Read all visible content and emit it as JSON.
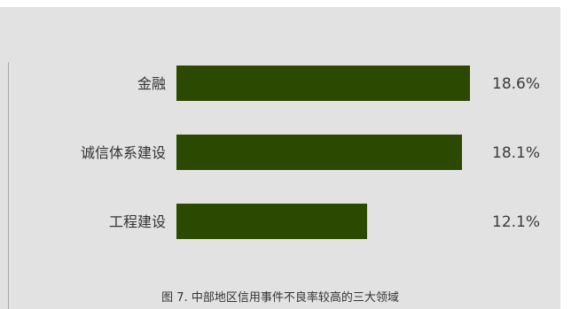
{
  "chart_data": {
    "type": "bar",
    "orientation": "horizontal",
    "categories": [
      "金融",
      "诚信体系建设",
      "工程建设"
    ],
    "values": [
      18.6,
      18.1,
      12.1
    ],
    "value_labels": [
      "18.6%",
      "18.1%",
      "12.1%"
    ],
    "unit": "%",
    "title": "",
    "xlabel": "",
    "ylabel": "",
    "xlim": [
      0,
      18.6
    ],
    "grid": false,
    "legend": "none",
    "bar_color": "#2b4a00",
    "caption": "图 7. 中部地区信用事件不良率较高的三大领域"
  }
}
